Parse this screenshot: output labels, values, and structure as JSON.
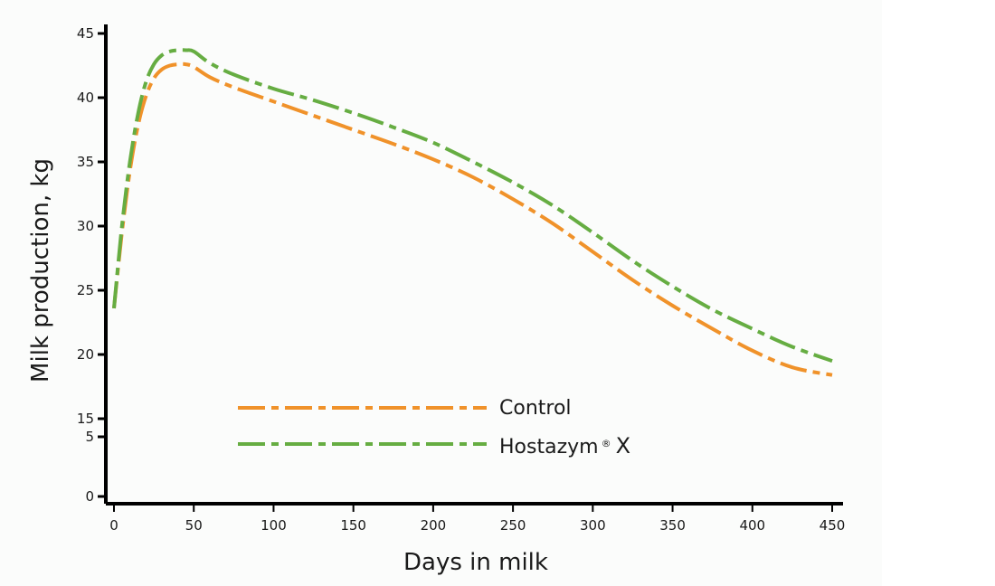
{
  "chart_data": {
    "type": "line",
    "xlabel": "Days in milk",
    "ylabel": "Milk production, kg",
    "xlim": [
      0,
      450
    ],
    "x_ticks": [
      "0",
      "50",
      "100",
      "150",
      "200",
      "250",
      "300",
      "350",
      "400",
      "450"
    ],
    "y_ticks": [
      "0",
      "5",
      "15",
      "20",
      "25",
      "30",
      "35",
      "40",
      "45"
    ],
    "y_axis_break": "between 5 and 15",
    "grid": false,
    "legend_position": "lower-left",
    "series": [
      {
        "name": "Control",
        "color": "#f0922a",
        "line_style": "dash-dot",
        "x": [
          0,
          5,
          10,
          15,
          20,
          25,
          30,
          35,
          40,
          45,
          50,
          60,
          75,
          100,
          125,
          150,
          175,
          200,
          225,
          250,
          275,
          300,
          325,
          350,
          375,
          400,
          425,
          450
        ],
        "y": [
          23.6,
          29.5,
          34.3,
          37.8,
          40.1,
          41.5,
          42.2,
          42.5,
          42.6,
          42.6,
          42.4,
          41.6,
          40.8,
          39.7,
          38.6,
          37.5,
          36.4,
          35.2,
          33.8,
          32.1,
          30.2,
          28.0,
          25.8,
          23.8,
          22.0,
          20.3,
          19.0,
          18.4
        ]
      },
      {
        "name": "Hostazym X",
        "legend_name": "Hostazym",
        "legend_suffix": "X",
        "legend_sup": "®",
        "color": "#66ad42",
        "line_style": "dash-dot",
        "x": [
          0,
          5,
          10,
          15,
          20,
          25,
          30,
          35,
          40,
          45,
          50,
          60,
          75,
          100,
          125,
          150,
          175,
          200,
          225,
          250,
          275,
          300,
          325,
          350,
          375,
          400,
          425,
          450
        ],
        "y": [
          23.6,
          30.0,
          35.0,
          38.7,
          41.2,
          42.6,
          43.3,
          43.6,
          43.7,
          43.7,
          43.6,
          42.7,
          41.8,
          40.7,
          39.8,
          38.8,
          37.7,
          36.5,
          35.0,
          33.4,
          31.6,
          29.5,
          27.3,
          25.3,
          23.5,
          22.0,
          20.6,
          19.5
        ]
      }
    ]
  }
}
